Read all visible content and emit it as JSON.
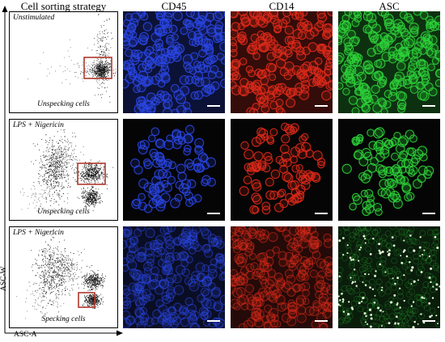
{
  "headers": {
    "strategy": "Cell sorting strategy",
    "cd45": "CD45",
    "cd14": "CD14",
    "asc": "ASC"
  },
  "rows": [
    {
      "condition": "Unstimulated",
      "population": "Unspecking cells"
    },
    {
      "condition": "LPS + Nigericin",
      "population": "Unspecking cells"
    },
    {
      "condition": "LPS + Nigericin",
      "population": "Specking cells"
    }
  ],
  "axes": {
    "y": "ASC-W",
    "x": "ASC-A"
  },
  "colors": {
    "cd45": "#2a46e6",
    "cd14": "#e02a1a",
    "asc": "#2ed13a",
    "gate": "#b0382e"
  }
}
